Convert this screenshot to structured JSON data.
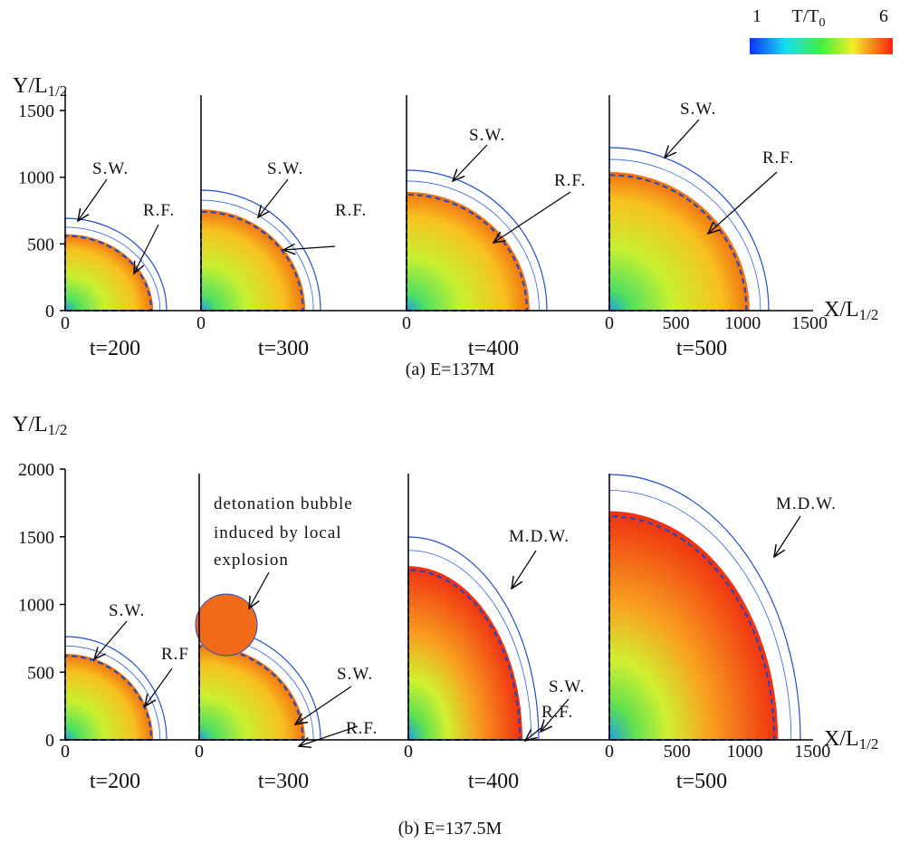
{
  "colorbar": {
    "min": "1",
    "label": "T/T",
    "label_sub": "0",
    "max": "6"
  },
  "rows": [
    {
      "caption": "(a) E=137M",
      "y_label": "Y/L",
      "y_label_sub": "1/2",
      "x_label": "X/L",
      "x_label_sub": "1/2",
      "yticks": [
        "0",
        "500",
        "1000",
        "1500"
      ],
      "xticks": [
        "0",
        "500",
        "1000",
        "1500"
      ],
      "panels": [
        {
          "time": "t=200",
          "x_tick": "0",
          "annotations": [
            "S.W.",
            "R.F."
          ]
        },
        {
          "time": "t=300",
          "x_tick": "0",
          "annotations": [
            "S.W.",
            "R.F."
          ]
        },
        {
          "time": "t=400",
          "x_tick": "0",
          "annotations": [
            "S.W.",
            "R.F."
          ]
        },
        {
          "time": "t=500",
          "annotations": [
            "S.W.",
            "R.F."
          ]
        }
      ]
    },
    {
      "caption": "(b) E=137.5M",
      "y_label": "Y/L",
      "y_label_sub": "1/2",
      "x_label": "X/L",
      "x_label_sub": "1/2",
      "yticks": [
        "0",
        "500",
        "1000",
        "1500",
        "2000"
      ],
      "xticks": [
        "0",
        "500",
        "1000",
        "1500"
      ],
      "panels": [
        {
          "time": "t=200",
          "x_tick": "0",
          "annotations": [
            "S.W.",
            "R.F"
          ]
        },
        {
          "time": "t=300",
          "x_tick": "0",
          "annotations": [
            "detonation bubble",
            "induced by local",
            "explosion",
            "S.W.",
            "R.F."
          ]
        },
        {
          "time": "t=400",
          "x_tick": "0",
          "annotations": [
            "M.D.W.",
            "S.W.",
            "R.F."
          ]
        },
        {
          "time": "t=500",
          "annotations": [
            "M.D.W."
          ]
        }
      ]
    }
  ]
}
